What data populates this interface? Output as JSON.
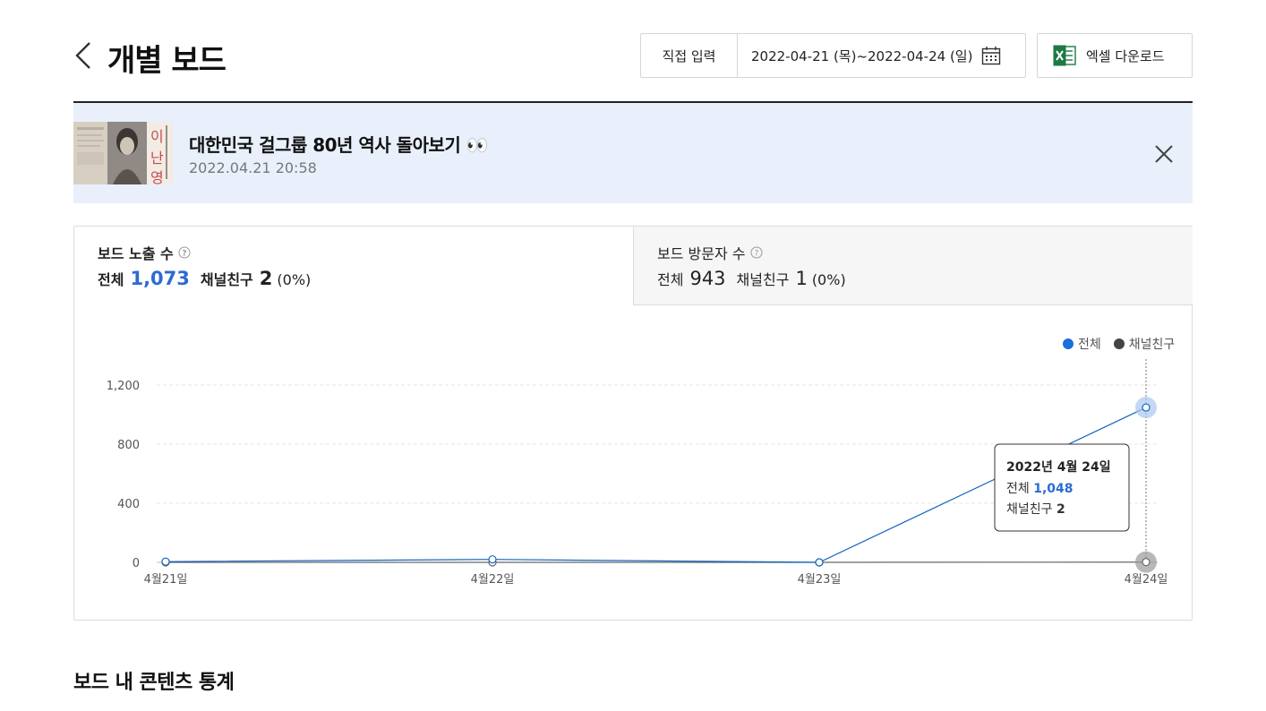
{
  "header": {
    "title": "개별 보드",
    "date_mode": "직접 입력",
    "date_range": "2022-04-21 (목)~2022-04-24 (일)",
    "excel_label": "엑셀 다운로드"
  },
  "board": {
    "name": "대한민국 걸그룹 80년 역사 돌아보기 👀",
    "date": "2022.04.21 20:58"
  },
  "tabs": [
    {
      "title": "보드 노출 수",
      "total_label": "전체",
      "total": "1,073",
      "friend_label": "채널친구",
      "friend": "2",
      "pct": "(0%)"
    },
    {
      "title": "보드 방문자 수",
      "total_label": "전체",
      "total": "943",
      "friend_label": "채널친구",
      "friend": "1",
      "pct": "(0%)"
    }
  ],
  "legend": {
    "total": "전체",
    "friend": "채널친구"
  },
  "colors": {
    "total": "#2d6ad6",
    "friend": "#444444"
  },
  "tooltip": {
    "title": "2022년 4월 24일",
    "total_label": "전체",
    "total_value": "1,048",
    "friend_label": "채널친구",
    "friend_value": "2"
  },
  "chart_data": {
    "type": "line",
    "categories": [
      "4월21일",
      "4월22일",
      "4월23일",
      "4월24일"
    ],
    "series": [
      {
        "name": "전체",
        "values": [
          5,
          20,
          0,
          1048
        ]
      },
      {
        "name": "채널친구",
        "values": [
          0,
          0,
          0,
          2
        ]
      }
    ],
    "ylim": [
      0,
      1200
    ],
    "yticks": [
      0,
      400,
      800,
      1200
    ],
    "ytick_labels": [
      "0",
      "400",
      "800",
      "1,200"
    ],
    "grid": true,
    "legend": "top-right"
  },
  "section_title": "보드 내 콘텐츠 통계"
}
